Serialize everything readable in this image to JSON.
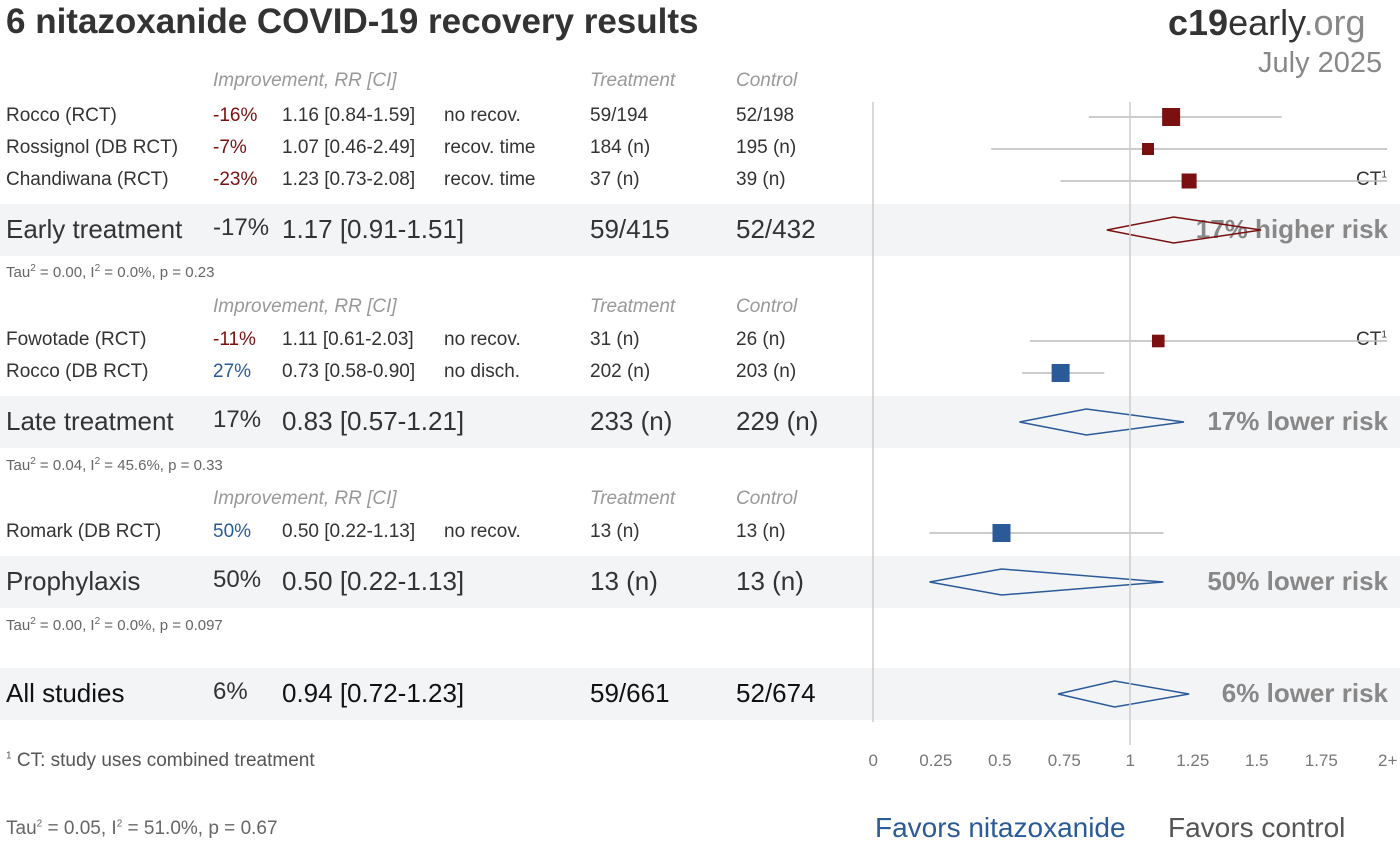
{
  "page": {
    "title": "6 nitazoxanide COVID-19 recovery results",
    "brand_bold": "c19",
    "brand_mid": "early",
    "brand_end": ".org",
    "date": "July 2025"
  },
  "columns": {
    "improvement": "Improvement, RR [CI]",
    "treatment": "Treatment",
    "control": "Control"
  },
  "colors": {
    "harm": "#7a1010",
    "benefit": "#2a5a98",
    "ci_line": "#bbbbbb",
    "ref_line": "#cccccc"
  },
  "chart_data": {
    "type": "forest",
    "xlim": [
      0,
      2
    ],
    "ticks": [
      {
        "value": 0,
        "label": "0"
      },
      {
        "value": 0.25,
        "label": "0.25"
      },
      {
        "value": 0.5,
        "label": "0.5"
      },
      {
        "value": 0.75,
        "label": "0.75"
      },
      {
        "value": 1,
        "label": "1"
      },
      {
        "value": 1.25,
        "label": "1.25"
      },
      {
        "value": 1.5,
        "label": "1.5"
      },
      {
        "value": 1.75,
        "label": "1.75"
      },
      {
        "value": 2,
        "label": "2+"
      }
    ],
    "reference_line": 1,
    "groups": [
      {
        "name": "Early treatment",
        "studies": [
          {
            "name": "Rocco (RCT)",
            "improvement": "-16%",
            "rr_text": "1.16 [0.84-1.59]",
            "rr": 1.16,
            "ci": [
              0.84,
              1.59
            ],
            "outcome": "no recov.",
            "treatment": "59/194",
            "control": "52/198",
            "ct": false,
            "marker_weight": 1.0
          },
          {
            "name": "Rossignol (DB RCT)",
            "improvement": "-7%",
            "rr_text": "1.07 [0.46-2.49]",
            "rr": 1.07,
            "ci": [
              0.46,
              2.49
            ],
            "outcome": "recov. time",
            "treatment": "184 (n)",
            "control": "195 (n)",
            "ct": false,
            "marker_weight": 0.5
          },
          {
            "name": "Chandiwana (RCT)",
            "improvement": "-23%",
            "rr_text": "1.23 [0.73-2.08]",
            "rr": 1.23,
            "ci": [
              0.73,
              2.08
            ],
            "outcome": "recov. time",
            "treatment": "37 (n)",
            "control": "39 (n)",
            "ct": true,
            "marker_weight": 0.75
          }
        ],
        "summary": {
          "improvement": "-17%",
          "rr_text": "1.17 [0.91-1.51]",
          "rr": 1.17,
          "ci": [
            0.91,
            1.51
          ],
          "treatment": "59/415",
          "control": "52/432",
          "risk_label": "17% higher risk"
        },
        "heterogeneity": {
          "tau2": "0.00",
          "i2": "0.0%",
          "p": "0.23"
        }
      },
      {
        "name": "Late treatment",
        "studies": [
          {
            "name": "Fowotade (RCT)",
            "improvement": "-11%",
            "rr_text": "1.11 [0.61-2.03]",
            "rr": 1.11,
            "ci": [
              0.61,
              2.03
            ],
            "outcome": "no recov.",
            "treatment": "31 (n)",
            "control": "26 (n)",
            "ct": true,
            "marker_weight": 0.55
          },
          {
            "name": "Rocco (DB RCT)",
            "improvement": "27%",
            "rr_text": "0.73 [0.58-0.90]",
            "rr": 0.73,
            "ci": [
              0.58,
              0.9
            ],
            "outcome": "no disch.",
            "treatment": "202 (n)",
            "control": "203 (n)",
            "ct": false,
            "marker_weight": 1.0
          }
        ],
        "summary": {
          "improvement": "17%",
          "rr_text": "0.83 [0.57-1.21]",
          "rr": 0.83,
          "ci": [
            0.57,
            1.21
          ],
          "treatment": "233 (n)",
          "control": "229 (n)",
          "risk_label": "17% lower risk"
        },
        "heterogeneity": {
          "tau2": "0.04",
          "i2": "45.6%",
          "p": "0.33"
        }
      },
      {
        "name": "Prophylaxis",
        "studies": [
          {
            "name": "Romark (DB RCT)",
            "improvement": "50%",
            "rr_text": "0.50 [0.22-1.13]",
            "rr": 0.5,
            "ci": [
              0.22,
              1.13
            ],
            "outcome": "no recov.",
            "treatment": "13 (n)",
            "control": "13 (n)",
            "ct": false,
            "marker_weight": 1.0
          }
        ],
        "summary": {
          "improvement": "50%",
          "rr_text": "0.50 [0.22-1.13]",
          "rr": 0.5,
          "ci": [
            0.22,
            1.13
          ],
          "treatment": "13 (n)",
          "control": "13 (n)",
          "risk_label": "50% lower risk"
        },
        "heterogeneity": {
          "tau2": "0.00",
          "i2": "0.0%",
          "p": "0.097"
        }
      }
    ],
    "overall": {
      "name": "All studies",
      "improvement": "6%",
      "rr_text": "0.94 [0.72-1.23]",
      "rr": 0.94,
      "ci": [
        0.72,
        1.23
      ],
      "treatment": "59/661",
      "control": "52/674",
      "risk_label": "6% lower risk"
    },
    "overall_heterogeneity": {
      "tau2": "0.05",
      "i2": "51.0%",
      "p": "0.67"
    },
    "ct_marker": "CT",
    "ct_sup": "1",
    "footnote_mark": "1",
    "footnote": "CT: study uses combined treatment",
    "favors_left": "Favors nitazoxanide",
    "favors_right": "Favors control"
  }
}
